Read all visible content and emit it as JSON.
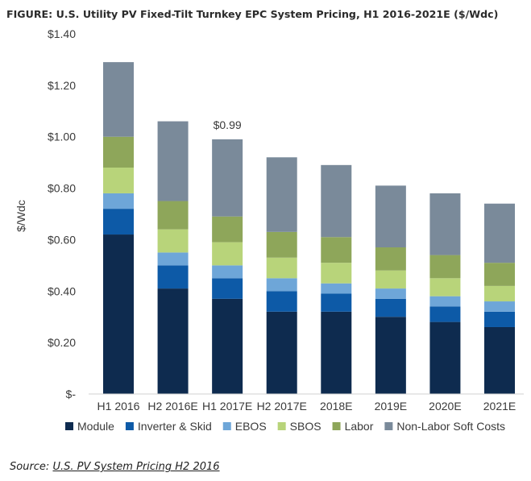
{
  "chart_data": {
    "type": "bar",
    "stacked": true,
    "title": "FIGURE: U.S. Utility PV Fixed-Tilt Turnkey EPC System Pricing, H1 2016-2021E ($/Wdc)",
    "ylabel": "$/Wdc",
    "xlabel": "",
    "ylim": [
      0,
      1.4
    ],
    "yticks": [
      0,
      0.2,
      0.4,
      0.6,
      0.8,
      1.0,
      1.2,
      1.4
    ],
    "ytick_labels": [
      "$-",
      "$0.20",
      "$0.40",
      "$0.60",
      "$0.80",
      "$1.00",
      "$1.20",
      "$1.40"
    ],
    "grid": false,
    "legend_position": "bottom",
    "categories": [
      "H1 2016",
      "H2 2016E",
      "H1 2017E",
      "H2 2017E",
      "2018E",
      "2019E",
      "2020E",
      "2021E"
    ],
    "series": [
      {
        "name": "Module",
        "color": "#0e2b4f",
        "values": [
          0.62,
          0.41,
          0.37,
          0.32,
          0.32,
          0.3,
          0.28,
          0.26
        ]
      },
      {
        "name": "Inverter & Skid",
        "color": "#0d5aa7",
        "values": [
          0.1,
          0.09,
          0.08,
          0.08,
          0.07,
          0.07,
          0.06,
          0.06
        ]
      },
      {
        "name": "EBOS",
        "color": "#6ea6d8",
        "values": [
          0.06,
          0.05,
          0.05,
          0.05,
          0.04,
          0.04,
          0.04,
          0.04
        ]
      },
      {
        "name": "SBOS",
        "color": "#b8d47a",
        "values": [
          0.1,
          0.09,
          0.09,
          0.08,
          0.08,
          0.07,
          0.07,
          0.06
        ]
      },
      {
        "name": "Labor",
        "color": "#8ea65a",
        "values": [
          0.12,
          0.11,
          0.1,
          0.1,
          0.1,
          0.09,
          0.09,
          0.09
        ]
      },
      {
        "name": "Non-Labor Soft Costs",
        "color": "#7a8a9a",
        "values": [
          0.29,
          0.31,
          0.3,
          0.29,
          0.28,
          0.24,
          0.24,
          0.23
        ]
      }
    ],
    "annotations": [
      {
        "text": "$0.99",
        "category": "H1 2017E"
      }
    ]
  },
  "source": {
    "prefix": "Source: ",
    "link_text": "U.S. PV System Pricing H2 2016"
  }
}
